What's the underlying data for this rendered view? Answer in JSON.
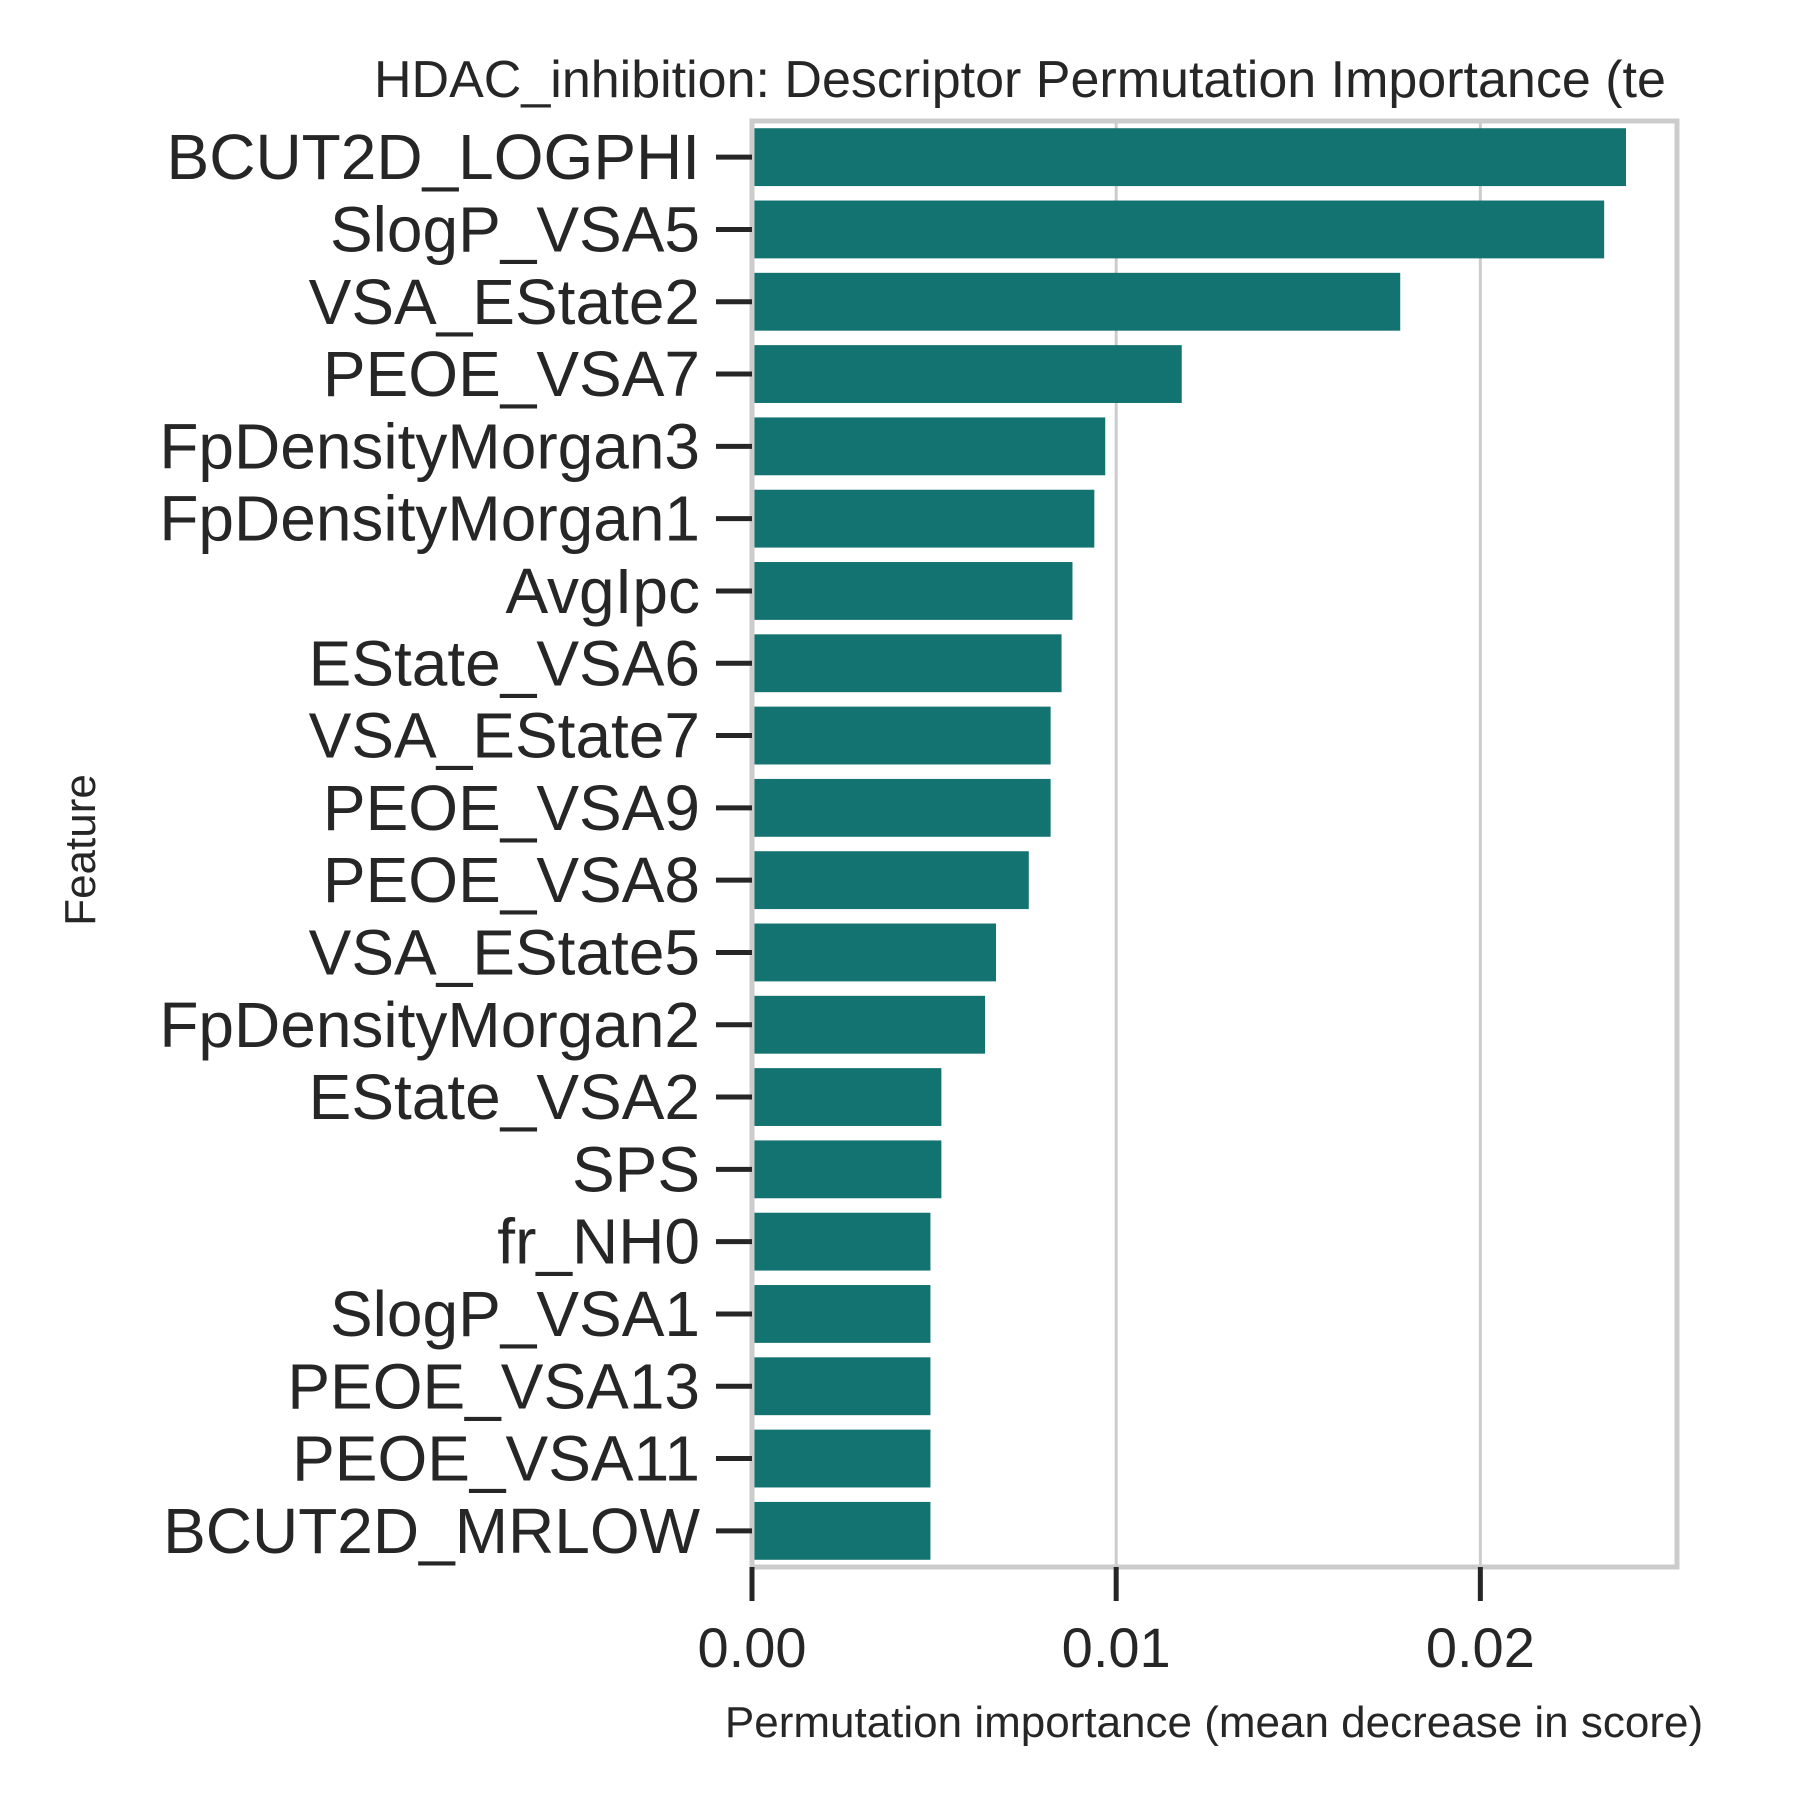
{
  "chart_data": {
    "type": "bar",
    "orientation": "horizontal",
    "title": "HDAC_inhibition: Descriptor Permutation Importance (te",
    "xlabel": "Permutation importance (mean decrease in score)",
    "ylabel": "Feature",
    "xlim": [
      0,
      0.0254
    ],
    "x_ticks": [
      {
        "value": 0,
        "label": "0.00"
      },
      {
        "value": 0.01,
        "label": "0.01"
      },
      {
        "value": 0.02,
        "label": "0.02"
      }
    ],
    "grid": true,
    "bar_color": "#127370",
    "categories": [
      "BCUT2D_LOGPHI",
      "SlogP_VSA5",
      "VSA_EState2",
      "PEOE_VSA7",
      "FpDensityMorgan3",
      "FpDensityMorgan1",
      "AvgIpc",
      "EState_VSA6",
      "VSA_EState7",
      "PEOE_VSA9",
      "PEOE_VSA8",
      "VSA_EState5",
      "FpDensityMorgan2",
      "EState_VSA2",
      "SPS",
      "fr_NH0",
      "SlogP_VSA1",
      "PEOE_VSA13",
      "PEOE_VSA11",
      "BCUT2D_MRLOW"
    ],
    "values": [
      0.024,
      0.0234,
      0.0178,
      0.0118,
      0.0097,
      0.0094,
      0.0088,
      0.0085,
      0.0082,
      0.0082,
      0.0076,
      0.0067,
      0.0064,
      0.0052,
      0.0052,
      0.0049,
      0.0049,
      0.0049,
      0.0049,
      0.0049
    ]
  }
}
